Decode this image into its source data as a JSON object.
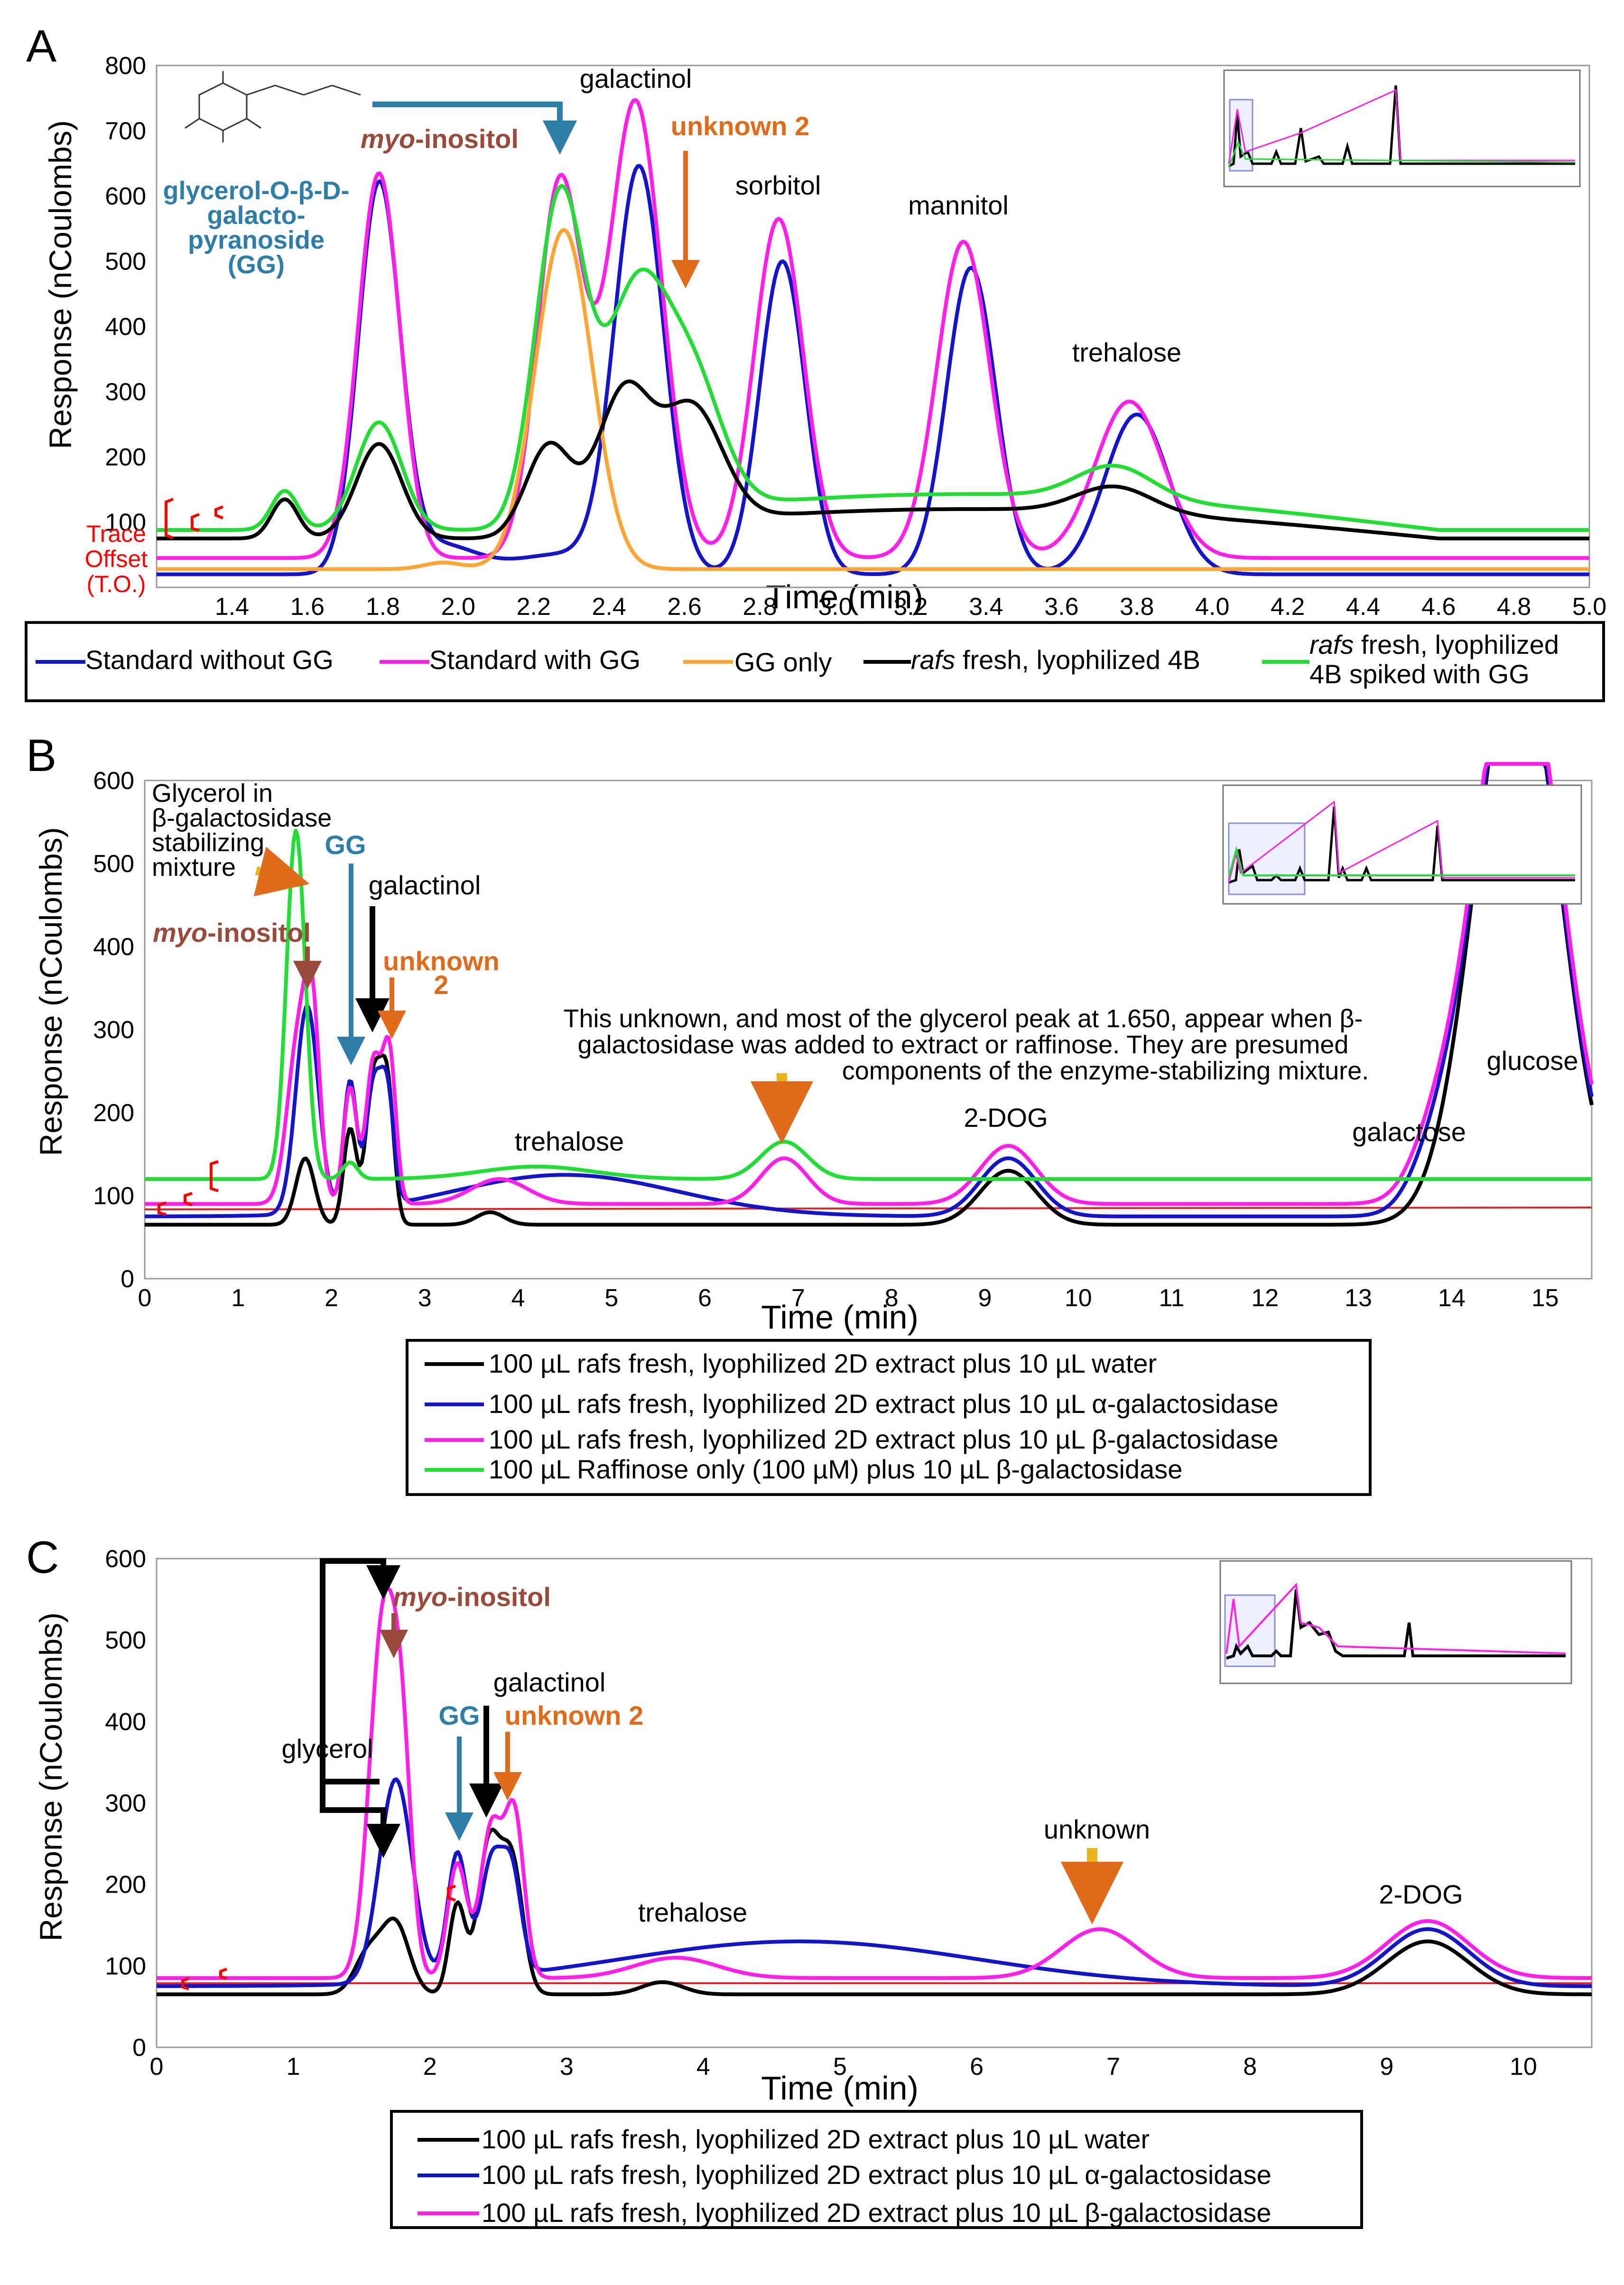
{
  "colors": {
    "blue": "#1515c8",
    "magenta": "#ff1fe8",
    "orange": "#ffa533",
    "black": "#000000",
    "green": "#22dd33",
    "baseline_red": "#e22222",
    "ann_blue": "#2f7ea8",
    "ann_brown": "#9a4a3a",
    "ann_orange": "#e06b1a",
    "ann_gold": "#e8b21a",
    "offset_red": "#ff0000"
  },
  "shared": {
    "ylabel": "Response (nCoulombs)",
    "xlabel": "Time (min)"
  },
  "panelA": {
    "letter": "A",
    "offset_note": [
      "Trace",
      "Offset",
      "(T.O.)"
    ],
    "annotations": {
      "gg": [
        "glycerol-O-β-D-",
        "galacto-",
        "pyranoside",
        "(GG)"
      ],
      "myo_prefix": "myo",
      "myo_suffix": "-inositol",
      "galactinol": "galactinol",
      "unknown2": "unknown 2",
      "sorbitol": "sorbitol",
      "mannitol": "mannitol",
      "trehalose": "trehalose"
    },
    "legend": {
      "std_no_gg": "Standard without GG",
      "std_gg": "Standard with GG",
      "gg_only": "GG only",
      "rafs_italic": "rafs",
      "rafs4b": " fresh, lyophilized 4B",
      "spiked_l1": " fresh, lyophilized",
      "spiked_l2": "4B spiked with GG"
    }
  },
  "panelB": {
    "letter": "B",
    "annotations": {
      "glycerol_note": [
        "Glycerol in",
        "β-galactosidase",
        "stabilizing",
        "mixture"
      ],
      "gg": "GG",
      "myo_prefix": "myo",
      "myo_suffix": "-inositol",
      "galactinol": "galactinol",
      "unknown2": [
        "unknown",
        "2"
      ],
      "note": [
        "This unknown, and most of the glycerol peak at 1.650,  appear when β-",
        "galactosidase was added to extract or raffinose. They are presumed",
        "components of the enzyme-stabilizing mixture."
      ],
      "trehalose": "trehalose",
      "twodog": "2-DOG",
      "galactose": "galactose",
      "glucose": "glucose"
    },
    "legend": [
      "100 µL rafs fresh, lyophilized 2D extract plus 10 µL water",
      "100 µL rafs fresh, lyophilized 2D extract plus 10 µL α-galactosidase",
      "100 µL rafs fresh, lyophilized 2D extract plus 10 µL β-galactosidase",
      "100 µL Raffinose only (100 µM) plus 10 µL β-galactosidase"
    ]
  },
  "panelC": {
    "letter": "C",
    "annotations": {
      "myo_prefix": "myo",
      "myo_suffix": "-inositol",
      "glycerol": "glycerol",
      "gg": "GG",
      "galactinol": "galactinol",
      "unknown2": "unknown 2",
      "trehalose": "trehalose",
      "unknown": "unknown",
      "twodog": "2-DOG"
    },
    "legend": [
      "100 µL rafs fresh, lyophilized 2D extract plus 10 µL water",
      "100 µL rafs fresh, lyophilized 2D extract plus 10 µL α-galactosidase",
      "100 µL rafs fresh, lyophilized 2D extract plus 10 µL β-galactosidase"
    ]
  },
  "chart_data": [
    {
      "type": "line",
      "title": "A",
      "xlabel": "Time (min)",
      "ylabel": "Response (nCoulombs)",
      "xlim": [
        1.2,
        5.0
      ],
      "ylim": [
        0,
        800
      ],
      "xticks": [
        1.4,
        1.6,
        1.8,
        2.0,
        2.2,
        2.4,
        2.6,
        2.8,
        3.0,
        3.2,
        3.4,
        3.6,
        3.8,
        4.0,
        4.2,
        4.4,
        4.6,
        4.8,
        5.0
      ],
      "yticks": [
        100,
        200,
        300,
        400,
        500,
        600,
        700,
        800
      ],
      "series": [
        {
          "name": "Standard without GG",
          "color_key": "blue",
          "base": 20,
          "peaks": [
            [
              1.79,
              590,
              0.055
            ],
            [
              1.95,
              45,
              0.1
            ],
            [
              2.27,
              30,
              0.12
            ],
            [
              2.48,
              620,
              0.065
            ],
            [
              2.86,
              480,
              0.06
            ],
            [
              3.36,
              470,
              0.065
            ],
            [
              3.8,
              245,
              0.085
            ]
          ]
        },
        {
          "name": "Standard with GG",
          "color_key": "magenta",
          "base": 45,
          "peaks": [
            [
              1.79,
              590,
              0.055
            ],
            [
              2.27,
              575,
              0.06
            ],
            [
              2.47,
              700,
              0.07
            ],
            [
              2.85,
              520,
              0.065
            ],
            [
              3.34,
              485,
              0.07
            ],
            [
              3.78,
              240,
              0.09
            ]
          ]
        },
        {
          "name": "GG only",
          "color_key": "orange",
          "base": 28,
          "peaks": [
            [
              1.96,
              10,
              0.05
            ],
            [
              2.28,
              520,
              0.075
            ]
          ]
        },
        {
          "name": "rafs fresh, lyophilized 4B",
          "color_key": "black",
          "base": 75,
          "peaks": [
            [
              1.54,
              60,
              0.035
            ],
            [
              1.79,
              145,
              0.06
            ],
            [
              2.24,
              135,
              0.06
            ],
            [
              2.44,
              205,
              0.07
            ],
            [
              2.62,
              175,
              0.08
            ],
            [
              3.74,
              40,
              0.1
            ]
          ],
          "tail": [
            [
              2.1,
              4.6,
              45
            ]
          ]
        },
        {
          "name": "rafs fresh, lyophilized 4B spiked with GG",
          "color_key": "green",
          "base": 88,
          "peaks": [
            [
              1.54,
              60,
              0.035
            ],
            [
              1.79,
              165,
              0.06
            ],
            [
              2.27,
              500,
              0.065
            ],
            [
              2.47,
              330,
              0.08
            ],
            [
              2.62,
              195,
              0.08
            ],
            [
              3.74,
              50,
              0.1
            ]
          ],
          "tail": [
            [
              2.1,
              4.6,
              55
            ]
          ]
        }
      ]
    },
    {
      "type": "line",
      "title": "B",
      "xlabel": "Time (min)",
      "ylabel": "Response (nCoulombs)",
      "xlim": [
        0,
        15.5
      ],
      "ylim": [
        0,
        600
      ],
      "xticks": [
        0,
        1,
        2,
        3,
        4,
        5,
        6,
        7,
        8,
        9,
        10,
        11,
        12,
        13,
        14,
        15
      ],
      "yticks": [
        0,
        100,
        200,
        300,
        400,
        500,
        600
      ],
      "series": [
        {
          "name": "100 µL rafs fresh, lyophilized 2D extract plus 10 µL water",
          "color_key": "black",
          "base": 65,
          "peaks": [
            [
              1.72,
              80,
              0.1
            ],
            [
              2.2,
              115,
              0.07
            ],
            [
              2.45,
              175,
              0.08
            ],
            [
              2.6,
              160,
              0.07
            ],
            [
              3.7,
              15,
              0.15
            ],
            [
              9.25,
              65,
              0.3
            ],
            [
              14.7,
              700,
              0.45
            ]
          ]
        },
        {
          "name": "100 µL rafs fresh, lyophilized 2D extract plus 10 µL α-galactosidase",
          "color_key": "blue",
          "base": 75,
          "peaks": [
            [
              1.74,
              250,
              0.12
            ],
            [
              2.2,
              155,
              0.07
            ],
            [
              2.45,
              145,
              0.08
            ],
            [
              2.6,
              130,
              0.07
            ],
            [
              4.5,
              50,
              1.2
            ],
            [
              9.25,
              70,
              0.3
            ],
            [
              13.8,
              40,
              0.25
            ],
            [
              14.7,
              700,
              0.45
            ]
          ]
        },
        {
          "name": "100 µL rafs fresh, lyophilized 2D extract plus 10 µL β-galactosidase",
          "color_key": "magenta",
          "base": 90,
          "peaks": [
            [
              1.65,
              200,
              0.12
            ],
            [
              1.8,
              180,
              0.08
            ],
            [
              2.2,
              140,
              0.07
            ],
            [
              2.45,
              170,
              0.08
            ],
            [
              2.62,
              180,
              0.07
            ],
            [
              3.8,
              30,
              0.3
            ],
            [
              6.85,
              55,
              0.25
            ],
            [
              9.25,
              70,
              0.3
            ],
            [
              13.8,
              45,
              0.25
            ],
            [
              14.7,
              700,
              0.45
            ]
          ]
        },
        {
          "name": "100 µL Raffinose only (100 µM) plus 10 µL β-galactosidase",
          "color_key": "green",
          "base": 120,
          "peaks": [
            [
              1.62,
              420,
              0.1
            ],
            [
              2.2,
              20,
              0.08
            ],
            [
              4.2,
              15,
              0.6
            ],
            [
              6.85,
              45,
              0.25
            ]
          ]
        }
      ]
    },
    {
      "type": "line",
      "title": "C",
      "xlabel": "Time (min)",
      "ylabel": "Response (nCoulombs)",
      "xlim": [
        0,
        10.5
      ],
      "ylim": [
        0,
        600
      ],
      "xticks": [
        0,
        1,
        2,
        3,
        4,
        5,
        6,
        7,
        8,
        9,
        10
      ],
      "yticks": [
        0,
        100,
        200,
        300,
        400,
        500,
        600
      ],
      "series": [
        {
          "name": "100 µL rafs fresh, lyophilized 2D extract plus 10 µL water",
          "color_key": "black",
          "base": 65,
          "peaks": [
            [
              1.55,
              50,
              0.1
            ],
            [
              1.75,
              85,
              0.1
            ],
            [
              2.2,
              110,
              0.06
            ],
            [
              2.43,
              180,
              0.08
            ],
            [
              2.6,
              160,
              0.08
            ],
            [
              3.7,
              15,
              0.15
            ],
            [
              9.3,
              65,
              0.3
            ]
          ]
        },
        {
          "name": "100 µL rafs fresh, lyophilized 2D extract plus 10 µL α-galactosidase",
          "color_key": "blue",
          "base": 75,
          "peaks": [
            [
              1.75,
              250,
              0.12
            ],
            [
              2.2,
              155,
              0.07
            ],
            [
              2.45,
              140,
              0.08
            ],
            [
              2.6,
              120,
              0.07
            ],
            [
              4.7,
              55,
              1.3
            ],
            [
              9.3,
              70,
              0.3
            ]
          ]
        },
        {
          "name": "100 µL rafs fresh, lyophilized 2D extract plus 10 µL β-galactosidase",
          "color_key": "magenta",
          "base": 85,
          "peaks": [
            [
              1.66,
              440,
              0.1
            ],
            [
              1.8,
              200,
              0.07
            ],
            [
              2.2,
              140,
              0.07
            ],
            [
              2.45,
              185,
              0.08
            ],
            [
              2.62,
              195,
              0.07
            ],
            [
              3.8,
              25,
              0.3
            ],
            [
              6.9,
              60,
              0.28
            ],
            [
              9.3,
              70,
              0.3
            ]
          ]
        }
      ]
    }
  ]
}
